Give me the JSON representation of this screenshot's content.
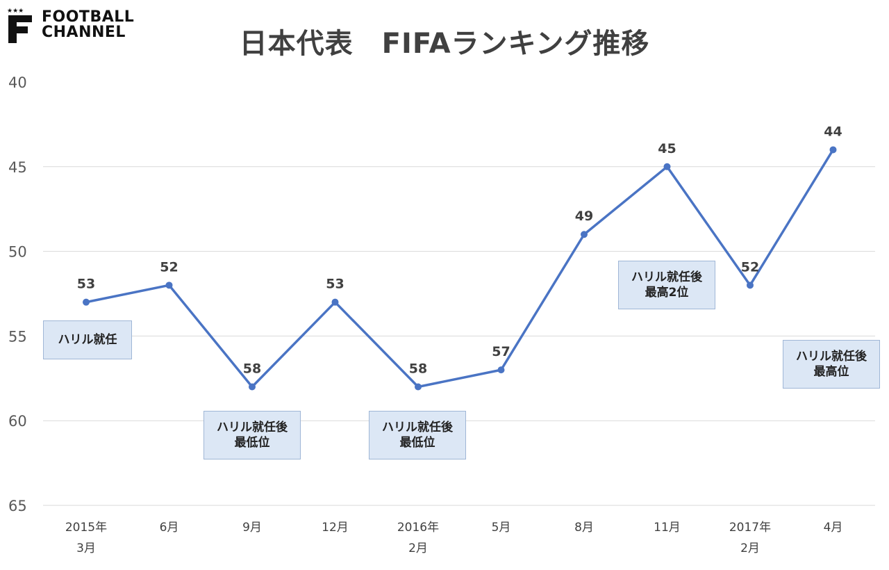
{
  "logo": {
    "line1": "FOOTBALL",
    "line2": "CHANNEL"
  },
  "chart_data": {
    "type": "line",
    "title": "日本代表　FIFAランキング推移",
    "categories": [
      [
        "2015年",
        "3月"
      ],
      [
        "6月"
      ],
      [
        "9月"
      ],
      [
        "12月"
      ],
      [
        "2016年",
        "2月"
      ],
      [
        "5月"
      ],
      [
        "8月"
      ],
      [
        "11月"
      ],
      [
        "2017年",
        "2月"
      ],
      [
        "4月"
      ]
    ],
    "series": [
      {
        "values": [
          53,
          52,
          58,
          53,
          58,
          57,
          49,
          45,
          52,
          44
        ],
        "color": "#4a74c4"
      }
    ],
    "ylim": [
      40,
      65
    ],
    "y_inverted": true,
    "y_ticks": [
      40,
      45,
      50,
      55,
      60,
      65
    ],
    "grid": true,
    "annotations": [
      {
        "text": "ハリル就任"
      },
      {
        "text": "ハリル就任後\n最低位"
      },
      {
        "text": "ハリル就任後\n最低位"
      },
      {
        "text": "ハリル就任後\n最高2位"
      },
      {
        "text": "ハリル就任後\n最高位"
      }
    ]
  }
}
